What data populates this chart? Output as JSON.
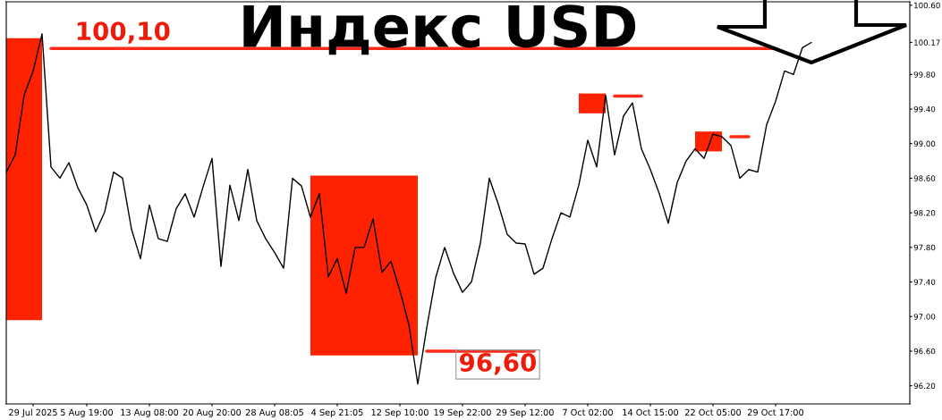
{
  "chart_data": {
    "type": "line",
    "title": "Индекс USD",
    "categories": [
      null,
      null,
      null,
      "29 Jul 2025",
      null,
      null,
      null,
      null,
      null,
      "5 Aug 19:00",
      null,
      null,
      null,
      null,
      null,
      null,
      "13 Aug 08:00",
      null,
      null,
      null,
      null,
      null,
      null,
      "20 Aug 20:00",
      null,
      null,
      null,
      null,
      null,
      null,
      "28 Aug 08:05",
      null,
      null,
      null,
      null,
      null,
      null,
      "4 Sep 21:05",
      null,
      null,
      null,
      null,
      null,
      null,
      "12 Sep 10:00",
      null,
      null,
      null,
      null,
      null,
      null,
      "19 Sep 22:00",
      null,
      null,
      null,
      null,
      null,
      null,
      "29 Sep 12:00",
      null,
      null,
      null,
      null,
      null,
      null,
      "7 Oct 02:00",
      null,
      null,
      null,
      null,
      null,
      null,
      "14 Oct 15:00",
      null,
      null,
      null,
      null,
      null,
      null,
      "22 Oct 05:00",
      null,
      null,
      null,
      null,
      null,
      null,
      "29 Oct 17:00",
      null,
      null,
      null,
      null,
      null,
      null,
      null,
      null,
      null,
      null,
      null,
      null,
      null,
      null,
      null
    ],
    "ylim": [
      95.99,
      100.64
    ],
    "yticks": [
      {
        "value": 96.2,
        "label": "96.20"
      },
      {
        "value": 96.6,
        "label": "96.60"
      },
      {
        "value": 97.0,
        "label": "97.00"
      },
      {
        "value": 97.4,
        "label": "97.40"
      },
      {
        "value": 97.8,
        "label": "97.80"
      },
      {
        "value": 98.2,
        "label": "98.20"
      },
      {
        "value": 98.6,
        "label": "98.60"
      },
      {
        "value": 99.0,
        "label": "99.00"
      },
      {
        "value": 99.4,
        "label": "99.40"
      },
      {
        "value": 99.8,
        "label": "99.80"
      },
      {
        "value": 100.17,
        "label": "100.17"
      },
      {
        "value": 100.6,
        "label": "100.60"
      }
    ],
    "line_style": "solid",
    "series": [
      {
        "type": "line",
        "color": "#ff2200",
        "values": [
          null,
          null,
          null,
          null,
          null,
          null,
          null,
          null,
          null,
          null,
          null,
          null,
          null,
          null,
          null,
          null,
          null,
          null,
          null,
          null,
          null,
          null,
          null,
          null,
          null,
          null,
          null,
          null,
          null,
          null,
          null,
          null,
          null,
          null,
          null,
          null,
          null,
          null,
          null,
          null,
          null,
          null,
          null,
          null,
          null,
          null,
          null,
          null,
          null,
          null,
          null,
          null,
          null,
          null,
          null,
          null,
          null,
          null,
          null,
          null,
          null,
          null,
          null,
          null,
          null,
          null,
          null,
          null,
          null,
          null,
          null,
          null,
          null,
          null,
          null,
          null,
          null,
          null,
          null,
          null,
          null,
          null,
          null,
          null,
          null,
          null,
          null,
          null,
          null,
          null,
          null,
          null,
          null,
          null,
          null,
          null,
          null,
          null,
          null,
          null,
          null,
          null
        ],
        "upper": [
          100.22,
          100.22,
          100.22,
          100.22,
          100.22,
          null,
          null,
          null,
          null,
          null,
          null,
          null,
          null,
          null,
          null,
          null,
          null,
          null,
          null,
          null,
          null,
          null,
          null,
          null,
          null,
          null,
          null,
          null,
          null,
          null,
          null,
          null,
          null,
          null,
          null,
          null,
          null,
          null,
          null,
          null,
          null,
          null,
          null,
          null,
          null,
          null,
          null,
          null,
          null,
          null,
          null,
          null,
          null,
          null,
          null,
          null,
          null,
          null,
          null,
          null,
          null,
          null,
          null,
          null,
          null,
          null,
          null,
          null,
          null,
          null,
          null,
          null,
          null,
          null,
          null,
          null,
          null,
          null,
          null,
          null,
          null,
          null,
          null,
          null,
          null,
          null,
          null,
          null,
          null,
          null,
          null,
          null,
          null,
          null,
          null,
          null,
          null,
          null,
          null,
          null,
          null,
          null
        ],
        "lower": [
          96.96,
          96.96,
          96.96,
          96.96,
          96.96,
          null,
          null,
          null,
          null,
          null,
          null,
          null,
          null,
          null,
          null,
          null,
          null,
          null,
          null,
          null,
          null,
          null,
          null,
          null,
          null,
          null,
          null,
          null,
          null,
          null,
          null,
          null,
          null,
          null,
          null,
          null,
          null,
          null,
          null,
          null,
          null,
          null,
          null,
          null,
          null,
          null,
          null,
          null,
          null,
          null,
          null,
          null,
          null,
          null,
          null,
          null,
          null,
          null,
          null,
          null,
          null,
          null,
          null,
          null,
          null,
          null,
          null,
          null,
          null,
          null,
          null,
          null,
          null,
          null,
          null,
          null,
          null,
          null,
          null,
          null,
          null,
          null,
          null,
          null,
          null,
          null,
          null,
          null,
          null,
          null,
          null,
          null,
          null,
          null,
          null,
          null,
          null,
          null,
          null,
          null,
          null,
          null
        ]
      },
      {
        "type": "line",
        "color": "#ff2200",
        "values": [
          null,
          null,
          null,
          null,
          null,
          null,
          null,
          null,
          null,
          null,
          null,
          null,
          null,
          null,
          null,
          null,
          null,
          null,
          null,
          null,
          null,
          null,
          null,
          null,
          null,
          null,
          null,
          null,
          null,
          null,
          null,
          null,
          null,
          null,
          null,
          null,
          null,
          null,
          null,
          null,
          null,
          null,
          null,
          null,
          null,
          null,
          null,
          null,
          null,
          null,
          null,
          null,
          null,
          null,
          null,
          null,
          null,
          null,
          null,
          null,
          null,
          null,
          null,
          null,
          null,
          null,
          null,
          null,
          null,
          null,
          null,
          null,
          null,
          null,
          null,
          null,
          null,
          null,
          null,
          null,
          null,
          null,
          null,
          null,
          null,
          null,
          null,
          null,
          null,
          null,
          null,
          null,
          null,
          null,
          null,
          null,
          null,
          null,
          null,
          null,
          null,
          null
        ],
        "upper": [
          null,
          null,
          null,
          null,
          null,
          null,
          null,
          null,
          null,
          null,
          null,
          null,
          null,
          null,
          null,
          null,
          null,
          null,
          null,
          null,
          null,
          null,
          null,
          null,
          null,
          null,
          null,
          null,
          null,
          null,
          null,
          null,
          null,
          null,
          98.63,
          98.63,
          98.63,
          98.63,
          98.63,
          98.63,
          98.63,
          98.63,
          98.63,
          98.63,
          98.63,
          98.63,
          98.63,
          null,
          null,
          null,
          null,
          null,
          null,
          null,
          null,
          null,
          null,
          null,
          null,
          null,
          null,
          null,
          null,
          null,
          null,
          null,
          null,
          null,
          null,
          null,
          null,
          null,
          null,
          null,
          null,
          null,
          null,
          null,
          null,
          null,
          null,
          null,
          null,
          null,
          null,
          null,
          null,
          null,
          null,
          null,
          null,
          null,
          null,
          null,
          null,
          null,
          null,
          null,
          null,
          null,
          null,
          null
        ],
        "lower": [
          null,
          null,
          null,
          null,
          null,
          null,
          null,
          null,
          null,
          null,
          null,
          null,
          null,
          null,
          null,
          null,
          null,
          null,
          null,
          null,
          null,
          null,
          null,
          null,
          null,
          null,
          null,
          null,
          null,
          null,
          null,
          null,
          null,
          null,
          96.55,
          96.55,
          96.55,
          96.55,
          96.55,
          96.55,
          96.55,
          96.55,
          96.55,
          96.55,
          96.55,
          96.55,
          96.55,
          null,
          null,
          null,
          null,
          null,
          null,
          null,
          null,
          null,
          null,
          null,
          null,
          null,
          null,
          null,
          null,
          null,
          null,
          null,
          null,
          null,
          null,
          null,
          null,
          null,
          null,
          null,
          null,
          null,
          null,
          null,
          null,
          null,
          null,
          null,
          null,
          null,
          null,
          null,
          null,
          null,
          null,
          null,
          null,
          null,
          null,
          null,
          null,
          null,
          null,
          null,
          null,
          null,
          null,
          null
        ]
      },
      {
        "type": "line",
        "color": "#ff2200",
        "values": [
          null,
          null,
          null,
          null,
          null,
          null,
          null,
          null,
          null,
          null,
          null,
          null,
          null,
          null,
          null,
          null,
          null,
          null,
          null,
          null,
          null,
          null,
          null,
          null,
          null,
          null,
          null,
          null,
          null,
          null,
          null,
          null,
          null,
          null,
          null,
          null,
          null,
          null,
          null,
          null,
          null,
          null,
          null,
          null,
          null,
          null,
          null,
          null,
          null,
          null,
          null,
          null,
          null,
          null,
          null,
          null,
          null,
          null,
          null,
          null,
          null,
          null,
          null,
          null,
          null,
          null,
          null,
          null,
          null,
          null,
          null,
          null,
          null,
          null,
          null,
          null,
          null,
          null,
          null,
          null,
          null,
          null,
          null,
          null,
          null,
          null,
          null,
          null,
          null,
          null,
          null,
          null,
          null,
          null,
          null,
          null,
          null,
          null,
          null,
          null,
          null,
          null
        ],
        "upper": [
          null,
          null,
          null,
          null,
          null,
          null,
          null,
          null,
          null,
          null,
          null,
          null,
          null,
          null,
          null,
          null,
          null,
          null,
          null,
          null,
          null,
          null,
          null,
          null,
          null,
          null,
          null,
          null,
          null,
          null,
          null,
          null,
          null,
          null,
          null,
          null,
          null,
          null,
          null,
          null,
          null,
          null,
          null,
          null,
          null,
          null,
          null,
          null,
          null,
          null,
          null,
          null,
          null,
          null,
          null,
          null,
          null,
          null,
          null,
          null,
          null,
          null,
          null,
          null,
          99.58,
          99.58,
          99.58,
          99.58,
          null,
          null,
          null,
          null,
          null,
          null,
          null,
          null,
          null,
          null,
          null,
          null,
          null,
          null,
          null,
          null,
          null,
          null,
          null,
          null,
          null,
          null,
          null,
          null,
          null,
          null,
          null,
          null,
          null,
          null,
          null,
          null,
          null,
          null
        ],
        "lower": [
          null,
          null,
          null,
          null,
          null,
          null,
          null,
          null,
          null,
          null,
          null,
          null,
          null,
          null,
          null,
          null,
          null,
          null,
          null,
          null,
          null,
          null,
          null,
          null,
          null,
          null,
          null,
          null,
          null,
          null,
          null,
          null,
          null,
          null,
          null,
          null,
          null,
          null,
          null,
          null,
          null,
          null,
          null,
          null,
          null,
          null,
          null,
          null,
          null,
          null,
          null,
          null,
          null,
          null,
          null,
          null,
          null,
          null,
          null,
          null,
          null,
          null,
          null,
          null,
          99.35,
          99.35,
          99.35,
          99.35,
          null,
          null,
          null,
          null,
          null,
          null,
          null,
          null,
          null,
          null,
          null,
          null,
          null,
          null,
          null,
          null,
          null,
          null,
          null,
          null,
          null,
          null,
          null,
          null,
          null,
          null,
          null,
          null,
          null,
          null,
          null,
          null,
          null,
          null
        ]
      },
      {
        "type": "line",
        "color": "#ff2200",
        "values": [
          null,
          null,
          null,
          null,
          null,
          null,
          null,
          null,
          null,
          null,
          null,
          null,
          null,
          null,
          null,
          null,
          null,
          null,
          null,
          null,
          null,
          null,
          null,
          null,
          null,
          null,
          null,
          null,
          null,
          null,
          null,
          null,
          null,
          null,
          null,
          null,
          null,
          null,
          null,
          null,
          null,
          null,
          null,
          null,
          null,
          null,
          null,
          null,
          null,
          null,
          null,
          null,
          null,
          null,
          null,
          null,
          null,
          null,
          null,
          null,
          null,
          null,
          null,
          null,
          null,
          null,
          null,
          null,
          null,
          null,
          null,
          null,
          null,
          null,
          null,
          null,
          null,
          null,
          null,
          null,
          null,
          null,
          null,
          null,
          null,
          null,
          null,
          null,
          null,
          null,
          null,
          null,
          null,
          null,
          null,
          null,
          null,
          null,
          null,
          null,
          null,
          null
        ],
        "upper": [
          null,
          null,
          null,
          null,
          null,
          null,
          null,
          null,
          null,
          null,
          null,
          null,
          null,
          null,
          null,
          null,
          null,
          null,
          null,
          null,
          null,
          null,
          null,
          null,
          null,
          null,
          null,
          null,
          null,
          null,
          null,
          null,
          null,
          null,
          null,
          null,
          null,
          null,
          null,
          null,
          null,
          null,
          null,
          null,
          null,
          null,
          null,
          null,
          null,
          null,
          null,
          null,
          null,
          null,
          null,
          null,
          null,
          null,
          null,
          null,
          null,
          null,
          null,
          null,
          null,
          null,
          null,
          null,
          null,
          null,
          null,
          null,
          null,
          null,
          null,
          null,
          null,
          99.14,
          99.14,
          99.14,
          99.14,
          null,
          null,
          null,
          null,
          null,
          null,
          null,
          null,
          null,
          null,
          null,
          null,
          null,
          null,
          null,
          null,
          null,
          null,
          null,
          null,
          null
        ],
        "lower": [
          null,
          null,
          null,
          null,
          null,
          null,
          null,
          null,
          null,
          null,
          null,
          null,
          null,
          null,
          null,
          null,
          null,
          null,
          null,
          null,
          null,
          null,
          null,
          null,
          null,
          null,
          null,
          null,
          null,
          null,
          null,
          null,
          null,
          null,
          null,
          null,
          null,
          null,
          null,
          null,
          null,
          null,
          null,
          null,
          null,
          null,
          null,
          null,
          null,
          null,
          null,
          null,
          null,
          null,
          null,
          null,
          null,
          null,
          null,
          null,
          null,
          null,
          null,
          null,
          null,
          null,
          null,
          null,
          null,
          null,
          null,
          null,
          null,
          null,
          null,
          null,
          null,
          98.91,
          98.91,
          98.91,
          98.91,
          null,
          null,
          null,
          null,
          null,
          null,
          null,
          null,
          null,
          null,
          null,
          null,
          null,
          null,
          null,
          null,
          null,
          null,
          null,
          null,
          null
        ]
      },
      {
        "type": "line",
        "color": "#ff2a1a",
        "values": [
          null,
          null,
          null,
          null,
          null,
          100.1,
          100.1,
          100.1,
          100.1,
          100.1,
          100.1,
          100.1,
          100.1,
          100.1,
          100.1,
          100.1,
          100.1,
          100.1,
          100.1,
          100.1,
          100.1,
          100.1,
          100.1,
          100.1,
          100.1,
          100.1,
          100.1,
          100.1,
          100.1,
          100.1,
          100.1,
          100.1,
          100.1,
          100.1,
          100.1,
          100.1,
          100.1,
          100.1,
          100.1,
          100.1,
          100.1,
          100.1,
          100.1,
          100.1,
          100.1,
          100.1,
          100.1,
          100.1,
          100.1,
          100.1,
          100.1,
          100.1,
          100.1,
          100.1,
          100.1,
          100.1,
          100.1,
          100.1,
          100.1,
          100.1,
          100.1,
          100.1,
          100.1,
          100.1,
          100.1,
          100.1,
          100.1,
          100.1,
          100.1,
          100.1,
          100.1,
          100.1,
          100.1,
          100.1,
          100.1,
          100.1,
          100.1,
          100.1,
          100.1,
          100.1,
          100.1,
          100.1,
          100.1,
          100.1,
          100.1,
          100.1,
          100.1,
          null,
          null,
          null,
          null,
          null,
          null,
          null,
          null,
          null,
          null,
          null,
          null,
          null,
          null,
          null
        ]
      },
      {
        "type": "line",
        "color": "#ff2a1a",
        "values": [
          null,
          null,
          null,
          null,
          null,
          null,
          null,
          null,
          null,
          null,
          null,
          null,
          null,
          null,
          null,
          null,
          null,
          null,
          null,
          null,
          null,
          null,
          null,
          null,
          null,
          null,
          null,
          null,
          null,
          null,
          null,
          null,
          null,
          null,
          null,
          null,
          null,
          null,
          null,
          null,
          null,
          null,
          null,
          null,
          null,
          null,
          null,
          96.6,
          96.6,
          96.6,
          96.6,
          96.6,
          96.6,
          96.6,
          96.6,
          96.6,
          96.6,
          96.6,
          96.6,
          96.6,
          null,
          null,
          null,
          null,
          null,
          null,
          null,
          null,
          null,
          null,
          null,
          null,
          null,
          null,
          null,
          null,
          null,
          null,
          null,
          null,
          null,
          null,
          null,
          null,
          null,
          null,
          null,
          null,
          null,
          null,
          null,
          null,
          null,
          null,
          null,
          null,
          null,
          null,
          null,
          null,
          null,
          null
        ]
      },
      {
        "type": "line",
        "color": "#ff2a1a",
        "values": [
          null,
          null,
          null,
          null,
          null,
          null,
          null,
          null,
          null,
          null,
          null,
          null,
          null,
          null,
          null,
          null,
          null,
          null,
          null,
          null,
          null,
          null,
          null,
          null,
          null,
          null,
          null,
          null,
          null,
          null,
          null,
          null,
          null,
          null,
          null,
          null,
          null,
          null,
          null,
          null,
          null,
          null,
          null,
          null,
          null,
          null,
          null,
          null,
          null,
          null,
          null,
          null,
          null,
          null,
          null,
          null,
          null,
          null,
          null,
          null,
          null,
          null,
          null,
          null,
          null,
          null,
          null,
          null,
          99.55,
          99.55,
          99.55,
          99.55,
          null,
          null,
          null,
          null,
          null,
          null,
          null,
          null,
          null,
          null,
          null,
          null,
          null,
          null,
          null,
          null,
          null,
          null,
          null,
          null,
          null,
          null,
          null,
          null,
          null,
          null,
          null,
          null,
          null,
          null
        ]
      },
      {
        "type": "line",
        "color": "#ff2a1a",
        "values": [
          null,
          null,
          null,
          null,
          null,
          null,
          null,
          null,
          null,
          null,
          null,
          null,
          null,
          null,
          null,
          null,
          null,
          null,
          null,
          null,
          null,
          null,
          null,
          null,
          null,
          null,
          null,
          null,
          null,
          null,
          null,
          null,
          null,
          null,
          null,
          null,
          null,
          null,
          null,
          null,
          null,
          null,
          null,
          null,
          null,
          null,
          null,
          null,
          null,
          null,
          null,
          null,
          null,
          null,
          null,
          null,
          null,
          null,
          null,
          null,
          null,
          null,
          null,
          null,
          null,
          null,
          null,
          null,
          null,
          null,
          null,
          null,
          null,
          null,
          null,
          null,
          null,
          null,
          null,
          null,
          null,
          99.08,
          99.08,
          99.08,
          null,
          null,
          null,
          null,
          null,
          null,
          null,
          null,
          null,
          null,
          null,
          null,
          null,
          null,
          null,
          null,
          null,
          null
        ]
      },
      {
        "color": "#000000",
        "values": [
          98.67,
          98.87,
          99.56,
          99.84,
          100.27,
          98.73,
          98.6,
          98.78,
          98.49,
          98.29,
          97.98,
          98.21,
          98.67,
          98.6,
          98.01,
          97.67,
          98.29,
          97.9,
          97.87,
          98.25,
          98.42,
          98.15,
          98.5,
          98.83,
          97.58,
          98.52,
          98.11,
          98.7,
          98.11,
          97.9,
          97.74,
          97.56,
          98.6,
          98.51,
          98.15,
          98.42,
          97.46,
          97.67,
          97.27,
          97.8,
          97.8,
          98.13,
          97.51,
          97.64,
          97.3,
          96.91,
          96.22,
          96.87,
          97.45,
          97.8,
          97.5,
          97.28,
          97.4,
          97.85,
          98.6,
          98.3,
          97.95,
          97.85,
          97.84,
          97.49,
          97.56,
          97.9,
          98.2,
          98.15,
          98.52,
          99.04,
          98.73,
          99.56,
          98.87,
          99.32,
          99.47,
          98.94,
          98.7,
          98.42,
          98.08,
          98.55,
          98.8,
          98.94,
          98.83,
          99.11,
          99.08,
          98.98,
          98.6,
          98.7,
          98.67,
          99.22,
          99.49,
          99.84,
          99.8,
          100.11,
          100.17,
          null,
          null,
          null,
          null,
          null,
          null,
          null,
          null,
          null,
          null,
          null
        ]
      }
    ],
    "annotations": [
      "100,10",
      "96,60"
    ]
  }
}
